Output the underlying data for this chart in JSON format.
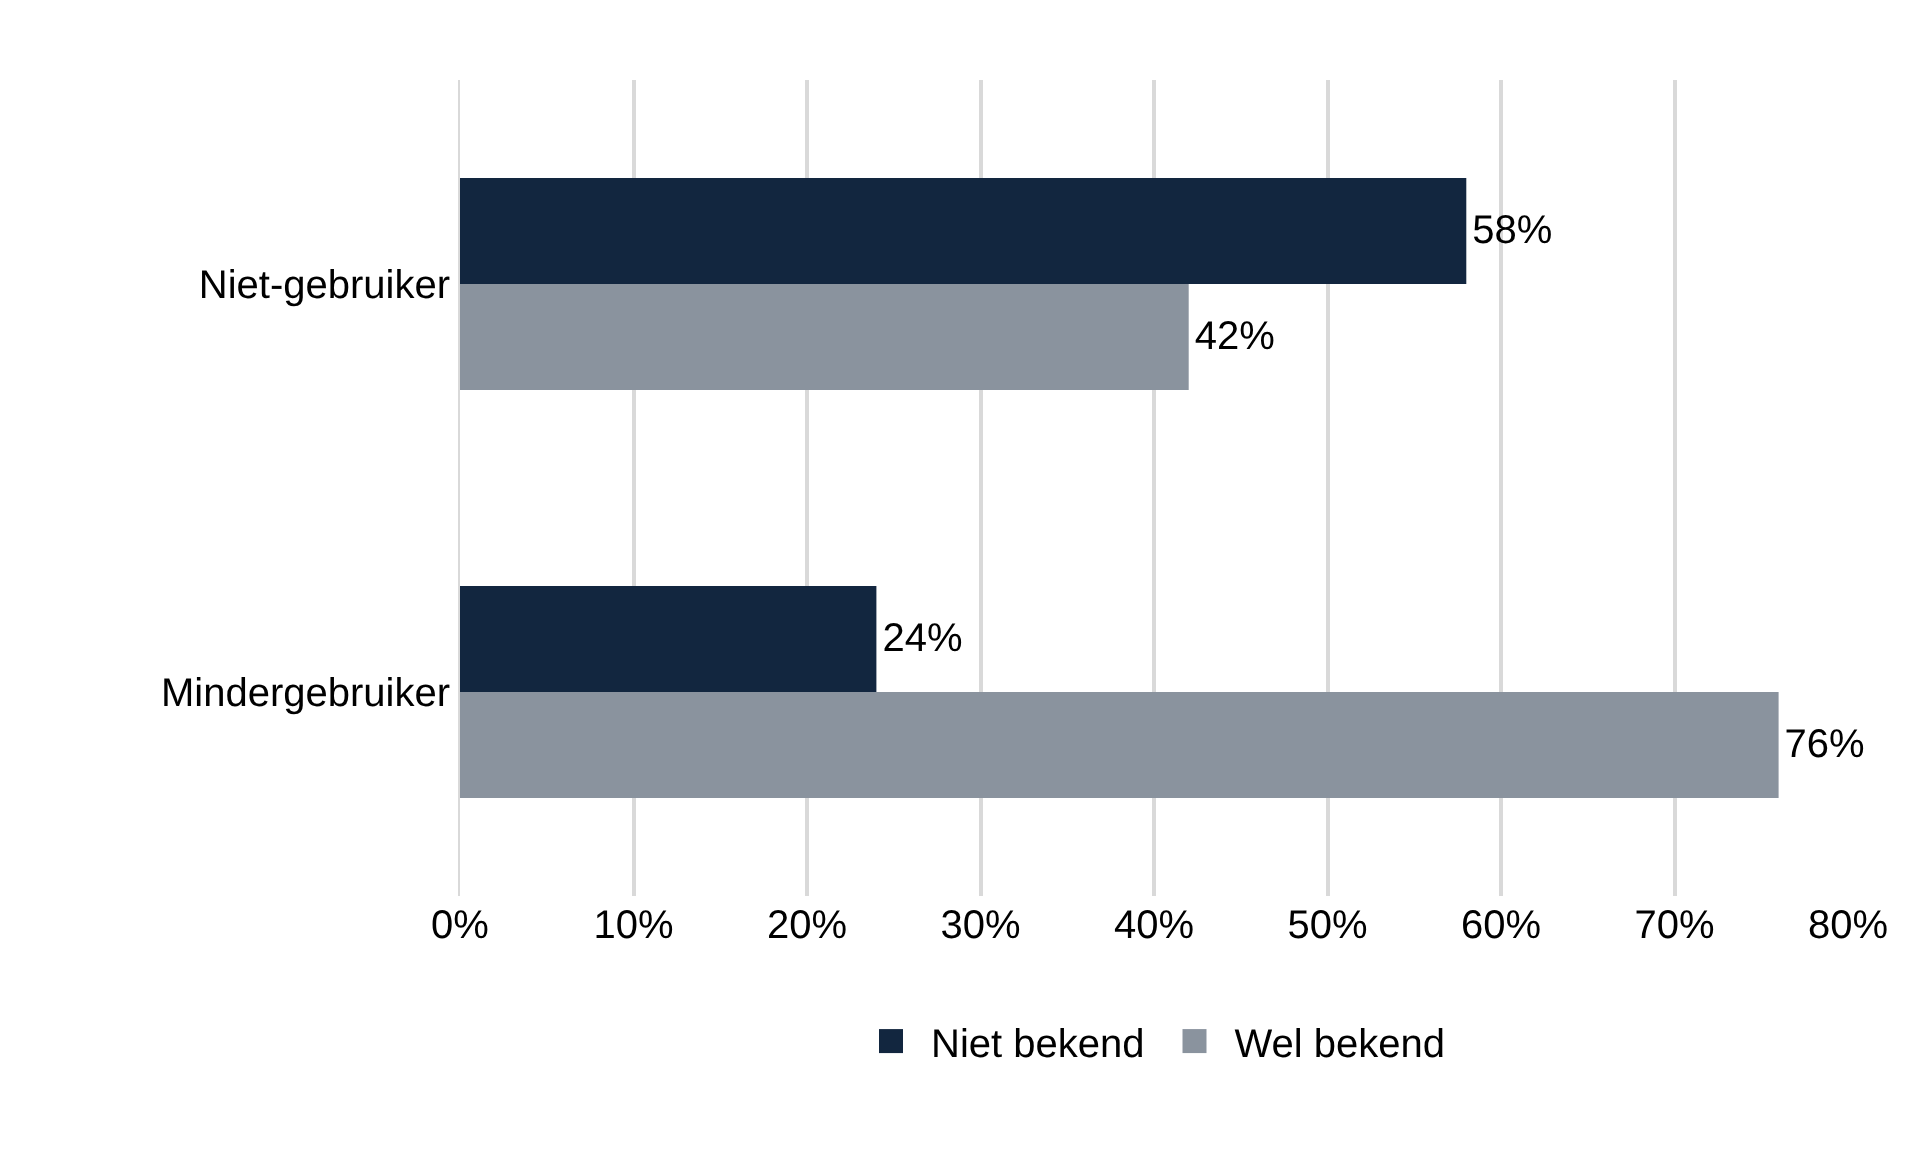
{
  "chart_data": {
    "type": "bar",
    "orientation": "horizontal",
    "categories": [
      "Niet-gebruiker",
      "Mindergebruiker"
    ],
    "series": [
      {
        "name": "Niet bekend",
        "color": "#12263f",
        "values": [
          58,
          24
        ],
        "value_labels": [
          "58%",
          "24%"
        ]
      },
      {
        "name": "Wel bekend",
        "color": "#8a939e",
        "values": [
          42,
          76
        ],
        "value_labels": [
          "42%",
          "76%"
        ]
      }
    ],
    "xlim": [
      0,
      80
    ],
    "xticks": [
      {
        "value": 0,
        "label": "0%"
      },
      {
        "value": 10,
        "label": "10%"
      },
      {
        "value": 20,
        "label": "20%"
      },
      {
        "value": 30,
        "label": "30%"
      },
      {
        "value": 40,
        "label": "40%"
      },
      {
        "value": 50,
        "label": "50%"
      },
      {
        "value": 60,
        "label": "60%"
      },
      {
        "value": 70,
        "label": "70%"
      },
      {
        "value": 80,
        "label": "80%"
      }
    ],
    "grid": "x",
    "legend": "bottom"
  }
}
